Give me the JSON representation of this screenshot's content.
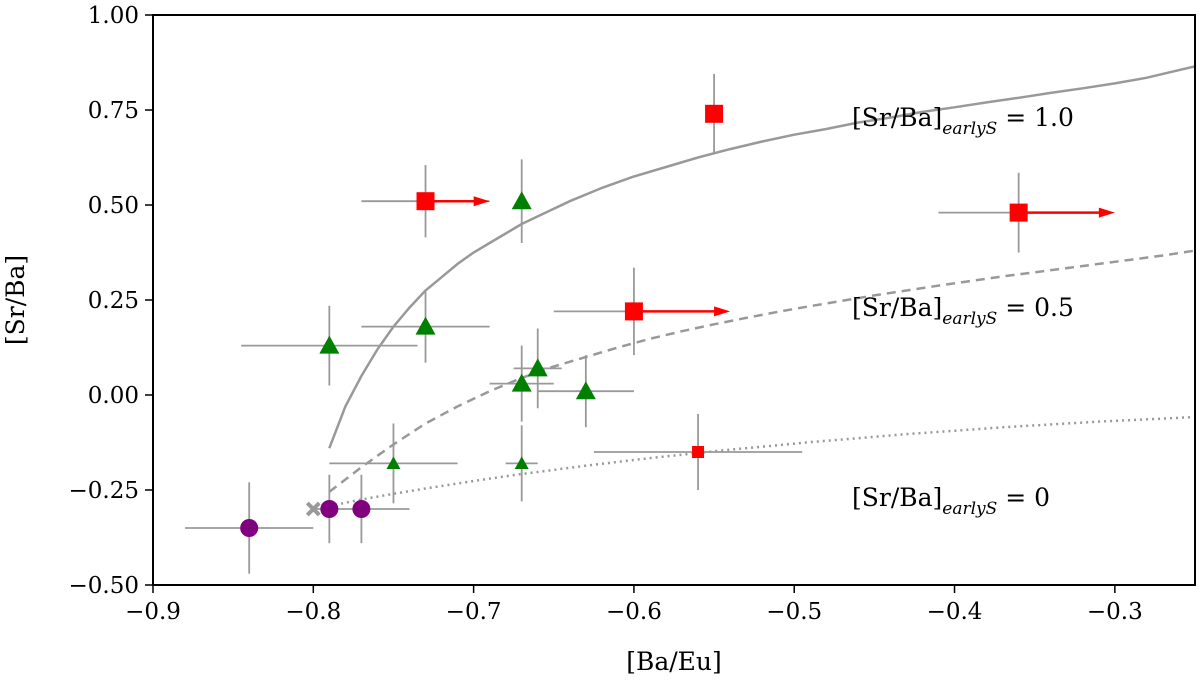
{
  "chart_data": {
    "type": "scatter",
    "xlabel": "[Ba/Eu]",
    "ylabel": "[Sr/Ba]",
    "xlim": [
      -0.9,
      -0.25
    ],
    "ylim": [
      -0.5,
      1.0
    ],
    "x_ticks": [
      -0.9,
      -0.8,
      -0.7,
      -0.6,
      -0.5,
      -0.4,
      -0.3
    ],
    "x_tick_labels": [
      "−0.9",
      "−0.8",
      "−0.7",
      "−0.6",
      "−0.5",
      "−0.4",
      "−0.3"
    ],
    "y_ticks": [
      -0.5,
      -0.25,
      0.0,
      0.25,
      0.5,
      0.75,
      1.0
    ],
    "y_tick_labels": [
      "−0.50",
      "−0.25",
      "0.00",
      "0.25",
      "0.50",
      "0.75",
      "1.00"
    ],
    "grid": false,
    "colors": {
      "square": "#ff0000",
      "triangle": "#008000",
      "circle": "#800080",
      "cross": "#999999",
      "errorbar": "#999999",
      "curve": "#999999",
      "arrow": "#ff0000"
    },
    "curves": [
      {
        "name": "early_s_1.0",
        "style": "solid",
        "label_main": "[Sr/Ba]",
        "label_sub": "earlyS",
        "label_value": " = 1.0",
        "x": [
          -0.79,
          -0.78,
          -0.77,
          -0.76,
          -0.75,
          -0.74,
          -0.73,
          -0.72,
          -0.71,
          -0.7,
          -0.69,
          -0.68,
          -0.67,
          -0.66,
          -0.65,
          -0.64,
          -0.62,
          -0.6,
          -0.58,
          -0.56,
          -0.54,
          -0.52,
          -0.5,
          -0.48,
          -0.46,
          -0.44,
          -0.42,
          -0.4,
          -0.38,
          -0.36,
          -0.34,
          -0.32,
          -0.3,
          -0.28,
          -0.25
        ],
        "y": [
          -0.14,
          -0.03,
          0.05,
          0.12,
          0.18,
          0.23,
          0.275,
          0.31,
          0.345,
          0.375,
          0.4,
          0.425,
          0.45,
          0.47,
          0.49,
          0.51,
          0.545,
          0.575,
          0.6,
          0.625,
          0.647,
          0.667,
          0.685,
          0.7,
          0.717,
          0.73,
          0.745,
          0.757,
          0.77,
          0.782,
          0.795,
          0.807,
          0.82,
          0.835,
          0.865
        ]
      },
      {
        "name": "early_s_0.5",
        "style": "dashed",
        "label_main": "[Sr/Ba]",
        "label_sub": "earlyS",
        "label_value": " = 0.5",
        "x": [
          -0.79,
          -0.77,
          -0.75,
          -0.73,
          -0.71,
          -0.69,
          -0.67,
          -0.65,
          -0.63,
          -0.61,
          -0.59,
          -0.57,
          -0.55,
          -0.53,
          -0.51,
          -0.49,
          -0.47,
          -0.45,
          -0.43,
          -0.41,
          -0.39,
          -0.37,
          -0.35,
          -0.33,
          -0.31,
          -0.29,
          -0.27,
          -0.25
        ],
        "y": [
          -0.255,
          -0.19,
          -0.13,
          -0.075,
          -0.03,
          0.01,
          0.045,
          0.075,
          0.1,
          0.125,
          0.148,
          0.168,
          0.186,
          0.203,
          0.219,
          0.234,
          0.248,
          0.262,
          0.275,
          0.288,
          0.3,
          0.312,
          0.323,
          0.334,
          0.345,
          0.356,
          0.367,
          0.38
        ]
      },
      {
        "name": "early_s_0",
        "style": "dotted",
        "label_main": "[Sr/Ba]",
        "label_sub": "earlyS",
        "label_value": " = 0",
        "x": [
          -0.79,
          -0.77,
          -0.75,
          -0.73,
          -0.71,
          -0.69,
          -0.67,
          -0.65,
          -0.63,
          -0.61,
          -0.59,
          -0.57,
          -0.55,
          -0.53,
          -0.51,
          -0.49,
          -0.47,
          -0.45,
          -0.43,
          -0.41,
          -0.39,
          -0.37,
          -0.35,
          -0.33,
          -0.31,
          -0.29,
          -0.27,
          -0.25
        ],
        "y": [
          -0.292,
          -0.275,
          -0.26,
          -0.246,
          -0.233,
          -0.22,
          -0.208,
          -0.197,
          -0.186,
          -0.176,
          -0.166,
          -0.157,
          -0.148,
          -0.14,
          -0.132,
          -0.124,
          -0.117,
          -0.11,
          -0.103,
          -0.097,
          -0.091,
          -0.085,
          -0.08,
          -0.075,
          -0.07,
          -0.066,
          -0.062,
          -0.058
        ]
      }
    ],
    "series": [
      {
        "name": "squares",
        "marker": "square",
        "points": [
          {
            "x": -0.73,
            "y": 0.51,
            "xerr": 0.04,
            "yerr": 0.095,
            "size": "large",
            "lower_limit": true,
            "arrow_to": -0.69
          },
          {
            "x": -0.55,
            "y": 0.74,
            "xerr": 0.0,
            "yerr": 0.105,
            "size": "large",
            "lower_limit": false
          },
          {
            "x": -0.36,
            "y": 0.48,
            "xerr": 0.05,
            "yerr": 0.105,
            "size": "large",
            "lower_limit": true,
            "arrow_to": -0.3
          },
          {
            "x": -0.6,
            "y": 0.22,
            "xerr": 0.05,
            "yerr": 0.115,
            "size": "large",
            "lower_limit": true,
            "arrow_to": -0.54
          },
          {
            "x": -0.56,
            "y": -0.15,
            "xerr": 0.065,
            "yerr": 0.1,
            "size": "small",
            "lower_limit": false
          }
        ]
      },
      {
        "name": "triangles",
        "marker": "triangle",
        "points": [
          {
            "x": -0.67,
            "y": 0.51,
            "xerr": 0.0,
            "yerr": 0.11,
            "size": "large"
          },
          {
            "x": -0.79,
            "y": 0.13,
            "xerr": 0.055,
            "yerr": 0.105,
            "size": "large"
          },
          {
            "x": -0.73,
            "y": 0.18,
            "xerr": 0.04,
            "yerr": 0.095,
            "size": "large"
          },
          {
            "x": -0.67,
            "y": 0.03,
            "xerr": 0.02,
            "yerr": 0.1,
            "size": "large"
          },
          {
            "x": -0.66,
            "y": 0.07,
            "xerr": 0.015,
            "yerr": 0.105,
            "size": "large"
          },
          {
            "x": -0.63,
            "y": 0.01,
            "xerr": 0.03,
            "yerr": 0.095,
            "size": "large"
          },
          {
            "x": -0.75,
            "y": -0.18,
            "xerr": 0.04,
            "yerr": 0.105,
            "size": "small"
          },
          {
            "x": -0.67,
            "y": -0.18,
            "xerr": 0.01,
            "yerr": 0.1,
            "size": "small"
          }
        ]
      },
      {
        "name": "circles",
        "marker": "circle",
        "points": [
          {
            "x": -0.84,
            "y": -0.35,
            "xerr": 0.04,
            "yerr": 0.12,
            "size": "large"
          },
          {
            "x": -0.79,
            "y": -0.3,
            "xerr": 0.0,
            "yerr": 0.09,
            "size": "large"
          },
          {
            "x": -0.77,
            "y": -0.3,
            "xerr": 0.03,
            "yerr": 0.09,
            "size": "large"
          }
        ]
      },
      {
        "name": "cross",
        "marker": "cross",
        "points": [
          {
            "x": -0.8,
            "y": -0.3,
            "xerr": 0.0,
            "yerr": 0.0,
            "size": "large"
          }
        ]
      }
    ]
  }
}
